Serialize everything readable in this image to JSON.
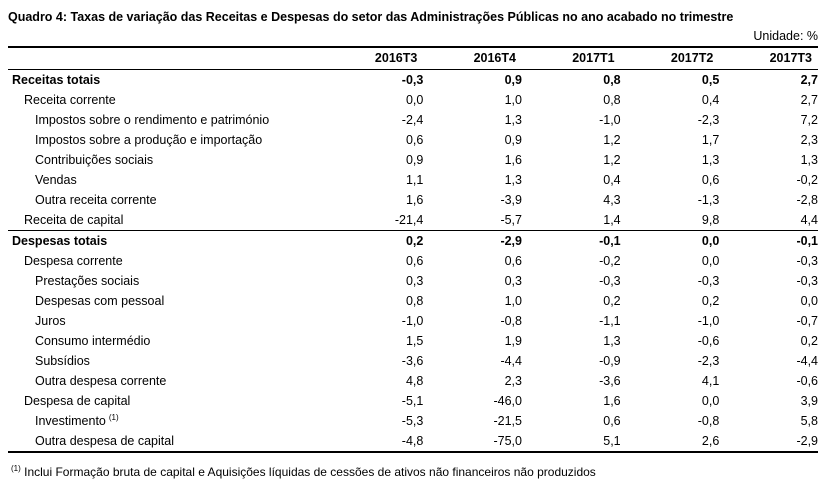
{
  "title": "Quadro 4: Taxas de variação das Receitas e Despesas do setor das Administrações Públicas no ano acabado no trimestre",
  "unit": "Unidade: %",
  "columns": [
    "",
    "2016T3",
    "2016T4",
    "2017T1",
    "2017T2",
    "2017T3"
  ],
  "rows": [
    {
      "label": "Receitas totais",
      "level": 0,
      "group_start": true,
      "values": [
        "-0,3",
        "0,9",
        "0,8",
        "0,5",
        "2,7"
      ]
    },
    {
      "label": "Receita corrente",
      "level": 1,
      "values": [
        "0,0",
        "1,0",
        "0,8",
        "0,4",
        "2,7"
      ]
    },
    {
      "label": "Impostos sobre o rendimento e património",
      "level": 2,
      "values": [
        "-2,4",
        "1,3",
        "-1,0",
        "-2,3",
        "7,2"
      ]
    },
    {
      "label": "Impostos sobre a produção e importação",
      "level": 2,
      "values": [
        "0,6",
        "0,9",
        "1,2",
        "1,7",
        "2,3"
      ]
    },
    {
      "label": "Contribuições sociais",
      "level": 2,
      "values": [
        "0,9",
        "1,6",
        "1,2",
        "1,3",
        "1,3"
      ]
    },
    {
      "label": "Vendas",
      "level": 2,
      "values": [
        "1,1",
        "1,3",
        "0,4",
        "0,6",
        "-0,2"
      ]
    },
    {
      "label": "Outra receita corrente",
      "level": 2,
      "values": [
        "1,6",
        "-3,9",
        "4,3",
        "-1,3",
        "-2,8"
      ]
    },
    {
      "label": "Receita de capital",
      "level": 1,
      "values": [
        "-21,4",
        "-5,7",
        "1,4",
        "9,8",
        "4,4"
      ]
    },
    {
      "label": "Despesas totais",
      "level": 0,
      "group_start": true,
      "values": [
        "0,2",
        "-2,9",
        "-0,1",
        "0,0",
        "-0,1"
      ]
    },
    {
      "label": "Despesa corrente",
      "level": 1,
      "values": [
        "0,6",
        "0,6",
        "-0,2",
        "0,0",
        "-0,3"
      ]
    },
    {
      "label": "Prestações sociais",
      "level": 2,
      "values": [
        "0,3",
        "0,3",
        "-0,3",
        "-0,3",
        "-0,3"
      ]
    },
    {
      "label": "Despesas com pessoal",
      "level": 2,
      "values": [
        "0,8",
        "1,0",
        "0,2",
        "0,2",
        "0,0"
      ]
    },
    {
      "label": "Juros",
      "level": 2,
      "values": [
        "-1,0",
        "-0,8",
        "-1,1",
        "-1,0",
        "-0,7"
      ]
    },
    {
      "label": "Consumo intermédio",
      "level": 2,
      "values": [
        "1,5",
        "1,9",
        "1,3",
        "-0,6",
        "0,2"
      ]
    },
    {
      "label": "Subsídios",
      "level": 2,
      "values": [
        "-3,6",
        "-4,4",
        "-0,9",
        "-2,3",
        "-4,4"
      ]
    },
    {
      "label": "Outra despesa corrente",
      "level": 2,
      "values": [
        "4,8",
        "2,3",
        "-3,6",
        "4,1",
        "-0,6"
      ]
    },
    {
      "label": "Despesa de capital",
      "level": 1,
      "values": [
        "-5,1",
        "-46,0",
        "1,6",
        "0,0",
        "3,9"
      ]
    },
    {
      "label": "Investimento",
      "level": 2,
      "note": "(1)",
      "values": [
        "-5,3",
        "-21,5",
        "0,6",
        "-0,8",
        "5,8"
      ]
    },
    {
      "label": "Outra despesa de capital",
      "level": 2,
      "values": [
        "-4,8",
        "-75,0",
        "5,1",
        "2,6",
        "-2,9"
      ]
    }
  ],
  "footnote": {
    "marker": "(1)",
    "text": "Inclui Formação bruta de capital e Aquisições líquidas de cessões de ativos não financeiros não produzidos"
  }
}
